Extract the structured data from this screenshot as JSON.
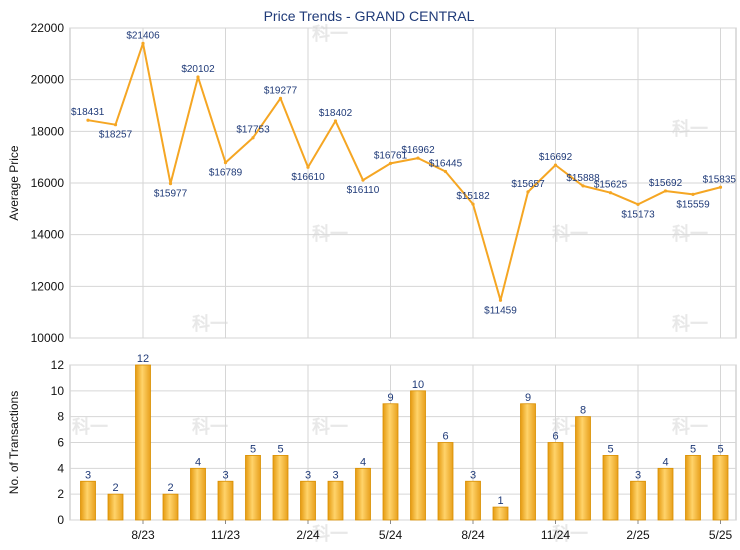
{
  "title": "Price Trends - GRAND CENTRAL",
  "watermark_text": "科一",
  "colors": {
    "price_line": "#f5a623",
    "bar_fill": "#f2b233",
    "bar_stroke": "#d98f00",
    "grid": "#d6d6d6",
    "title": "#1f3a78"
  },
  "chart_data": [
    {
      "type": "line",
      "ylabel": "Average Price",
      "ylim": [
        10000,
        22000
      ],
      "yticks": [
        "10000",
        "12000",
        "14000",
        "16000",
        "18000",
        "20000",
        "22000"
      ],
      "grid": true,
      "series": [
        {
          "values": [
            18431,
            18257,
            21406,
            15977,
            20102,
            16789,
            17753,
            19277,
            16610,
            18402,
            16110,
            16761,
            16962,
            16445,
            15182,
            11459,
            15657,
            16692,
            15888,
            15625,
            15173,
            15692,
            15559,
            15835
          ],
          "labels": [
            "$18431",
            "$18257",
            "$21406",
            "$15977",
            "$20102",
            "$16789",
            "$17753",
            "$19277",
            "$16610",
            "$18402",
            "$16110",
            "$16761",
            "$16962",
            "$16445",
            "$15182",
            "$11459",
            "$15657",
            "$16692",
            "$15888",
            "$15625",
            "$15173",
            "$15692",
            "$15559",
            "$15835"
          ]
        }
      ]
    },
    {
      "type": "bar",
      "ylabel": "No. of Transactions",
      "ylim": [
        0,
        12
      ],
      "yticks": [
        "0",
        "2",
        "4",
        "6",
        "8",
        "10",
        "12"
      ],
      "grid": true,
      "values": [
        3,
        2,
        12,
        2,
        4,
        3,
        5,
        5,
        3,
        3,
        4,
        9,
        10,
        6,
        3,
        1,
        9,
        6,
        8,
        5,
        3,
        4,
        5,
        5
      ],
      "xtick_labels": [
        {
          "index": 2,
          "label": "8/23"
        },
        {
          "index": 5,
          "label": "11/23"
        },
        {
          "index": 8,
          "label": "2/24"
        },
        {
          "index": 11,
          "label": "5/24"
        },
        {
          "index": 14,
          "label": "8/24"
        },
        {
          "index": 17,
          "label": "11/24"
        },
        {
          "index": 20,
          "label": "2/25"
        },
        {
          "index": 23,
          "label": "5/25"
        }
      ]
    }
  ]
}
